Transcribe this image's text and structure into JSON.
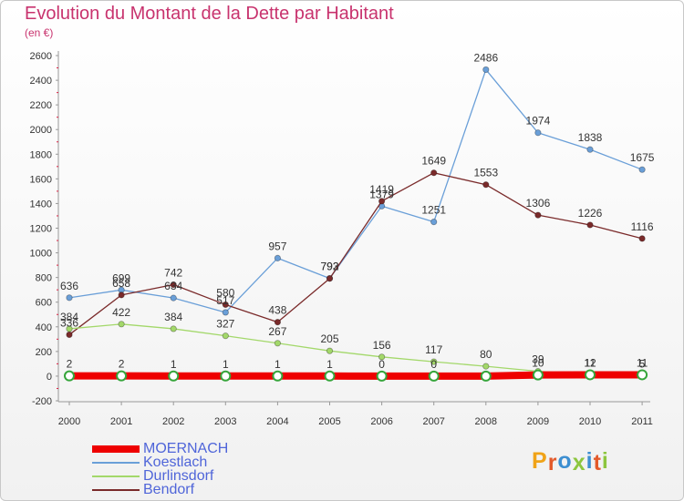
{
  "title": "Evolution du Montant de la Dette par Habitant",
  "subtitle": "(en €)",
  "logo_text": "Proxiti",
  "logo_colors": [
    "#f0a318",
    "#e35a2b",
    "#3d8fd1",
    "#8dc63f",
    "#3d8fd1",
    "#e35a2b",
    "#8dc63f"
  ],
  "chart_data": {
    "type": "line",
    "x": [
      "2000",
      "2001",
      "2002",
      "2003",
      "2004",
      "2005",
      "2006",
      "2007",
      "2008",
      "2009",
      "2010",
      "2011"
    ],
    "y_ticks": [
      "2600",
      "2400",
      "2200",
      "2000",
      "1800",
      "1600",
      "1400",
      "1200",
      "1000",
      "800",
      "600",
      "400",
      "200",
      "0",
      "-200"
    ],
    "ylim": [
      -200,
      2600
    ],
    "grid": false,
    "legend_position": "bottom-left",
    "series": [
      {
        "name": "MOERNACH",
        "color": "#ee0000",
        "values": [
          2,
          2,
          1,
          1,
          1,
          1,
          0,
          0,
          0,
          10,
          11,
          11
        ],
        "labels": [
          "2",
          "2",
          "1",
          "1",
          "1",
          "1",
          "0",
          "0",
          "",
          "10",
          "11",
          "11"
        ]
      },
      {
        "name": "Koestlach",
        "color": "#6a9fd8",
        "values": [
          636,
          699,
          634,
          517,
          957,
          793,
          1379,
          1251,
          2486,
          1974,
          1838,
          1675
        ],
        "labels": [
          "636",
          "699",
          "634",
          "517",
          "957",
          "793",
          "1379",
          "1251",
          "2486",
          "1974",
          "1838",
          "1675"
        ]
      },
      {
        "name": "Durlinsdorf",
        "color": "#a3d86a",
        "values": [
          384,
          422,
          384,
          327,
          267,
          205,
          156,
          117,
          80,
          39,
          12,
          5
        ],
        "labels": [
          "384",
          "422",
          "384",
          "327",
          "267",
          "205",
          "156",
          "117",
          "80",
          "39",
          "12",
          "5"
        ]
      },
      {
        "name": "Bendorf",
        "color": "#7a2a2a",
        "values": [
          336,
          658,
          742,
          580,
          438,
          792,
          1419,
          1649,
          1553,
          1306,
          1226,
          1116
        ],
        "labels": [
          "336",
          "658",
          "742",
          "580",
          "438",
          "792",
          "1419",
          "1649",
          "1553",
          "1306",
          "1226",
          "1116"
        ]
      }
    ]
  }
}
